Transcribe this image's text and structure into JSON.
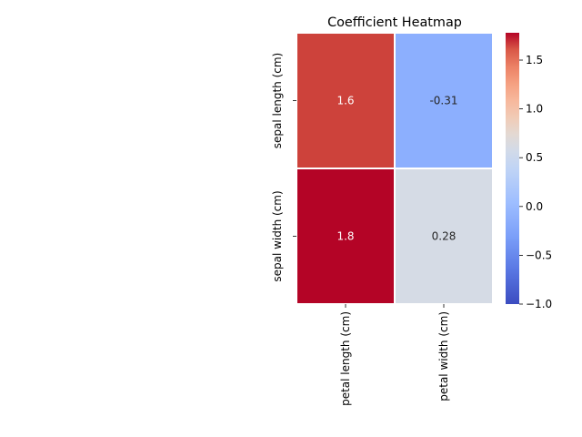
{
  "chart_data": {
    "type": "heatmap",
    "title": "Coefficient Heatmap",
    "rows": [
      "sepal length (cm)",
      "sepal width (cm)"
    ],
    "columns": [
      "petal length (cm)",
      "petal width (cm)"
    ],
    "values": [
      [
        1.6,
        -0.31
      ],
      [
        1.8,
        0.28
      ]
    ],
    "value_labels": [
      [
        "1.6",
        "-0.31"
      ],
      [
        "1.8",
        "0.28"
      ]
    ],
    "colormap": "coolwarm",
    "color_range": [
      -1.0,
      1.78
    ],
    "colorbar_ticks": [
      -1.0,
      -0.5,
      0.0,
      0.5,
      1.0,
      1.5
    ],
    "colorbar_tick_labels": [
      "−1.0",
      "−0.5",
      "0.0",
      "0.5",
      "1.0",
      "1.5"
    ],
    "cell_colors": [
      [
        "#cd423b",
        "#8caffe"
      ],
      [
        "#b40426",
        "#d5dbe5"
      ]
    ],
    "annotation_colors": [
      [
        "#ffffff",
        "#262626"
      ],
      [
        "#ffffff",
        "#262626"
      ]
    ],
    "cell_separator_color": "#ffffff",
    "colorbar_stops": [
      {
        "offset": 0.0,
        "color": "#3b4cc0"
      },
      {
        "offset": 0.125,
        "color": "#5977e3"
      },
      {
        "offset": 0.25,
        "color": "#7b9ff9"
      },
      {
        "offset": 0.375,
        "color": "#9ebeff"
      },
      {
        "offset": 0.5,
        "color": "#c0d4f5"
      },
      {
        "offset": 0.5625,
        "color": "#d1dae9"
      },
      {
        "offset": 0.625,
        "color": "#e3d9d3"
      },
      {
        "offset": 0.6875,
        "color": "#f1cbb6"
      },
      {
        "offset": 0.75,
        "color": "#f7b89c"
      },
      {
        "offset": 0.8125,
        "color": "#f5a081"
      },
      {
        "offset": 0.875,
        "color": "#ec8165"
      },
      {
        "offset": 0.9375,
        "color": "#d95847"
      },
      {
        "offset": 1.0,
        "color": "#b40426"
      }
    ]
  }
}
